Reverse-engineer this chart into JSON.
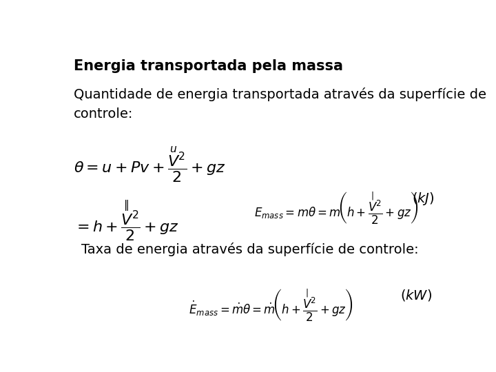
{
  "bg_color": "#ffffff",
  "title": "Energia transportada pela massa",
  "subtitle_line1": "Quantidade de energia transportada através da superfície de",
  "subtitle_line2": "controle:",
  "taxa_label": "Taxa de energia através da superfície de controle:",
  "title_fontsize": 15,
  "text_fontsize": 14,
  "eq_fontsize": 16
}
